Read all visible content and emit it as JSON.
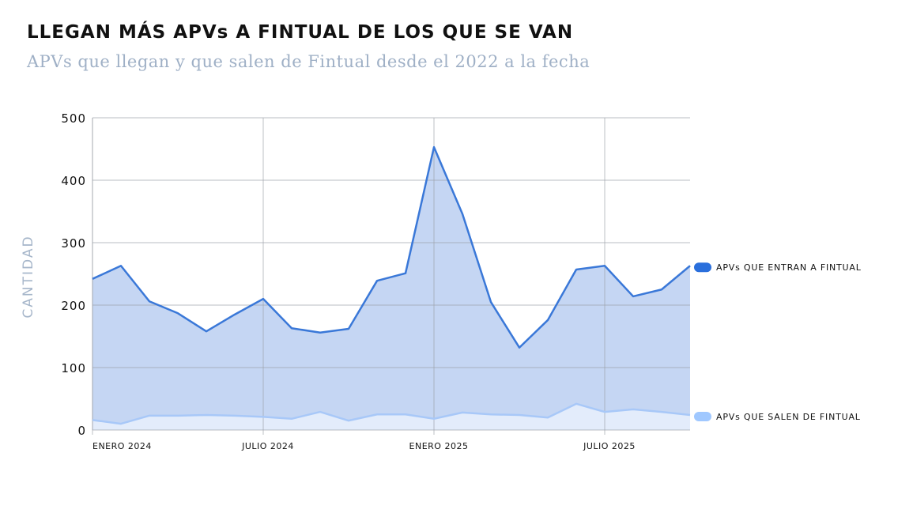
{
  "header": {
    "title": "LLEGAN MÁS APVs A FINTUAL DE LOS QUE SE VAN",
    "subtitle": "APVs que llegan y que salen de Fintual desde el 2022 a la fecha"
  },
  "chart_data": {
    "type": "area",
    "title": "LLEGAN MÁS APVs A FINTUAL DE LOS QUE SE VAN",
    "subtitle": "APVs que llegan y que salen de Fintual desde el 2022 a la fecha",
    "ylabel": "CANTIDAD",
    "ylim": [
      0,
      500
    ],
    "yticks": [
      "0",
      "100",
      "200",
      "300",
      "400",
      "500"
    ],
    "xlim": [
      "2024-01",
      "2025-10"
    ],
    "xticks": [
      {
        "label": "ENERO 2024",
        "x": "2024-01"
      },
      {
        "label": "JULIO 2024",
        "x": "2024-07"
      },
      {
        "label": "ENERO 2025",
        "x": "2025-01"
      },
      {
        "label": "JULIO 2025",
        "x": "2025-07"
      }
    ],
    "grid": true,
    "legend_placement": "right",
    "x": [
      "2024-01",
      "2024-02",
      "2024-03",
      "2024-04",
      "2024-05",
      "2024-06",
      "2024-07",
      "2024-08",
      "2024-09",
      "2024-10",
      "2024-11",
      "2024-12",
      "2025-01",
      "2025-02",
      "2025-03",
      "2025-04",
      "2025-05",
      "2025-06",
      "2025-07",
      "2025-08",
      "2025-09",
      "2025-10"
    ],
    "series": [
      {
        "name": "APVs QUE ENTRAN A FINTUAL",
        "color": "#3a78d8",
        "fill": "#c5d6f3",
        "legend_color": "#2a6fdc",
        "values": [
          242,
          263,
          206,
          187,
          158,
          185,
          210,
          163,
          156,
          162,
          239,
          251,
          453,
          346,
          205,
          132,
          176,
          257,
          263,
          214,
          225,
          263
        ]
      },
      {
        "name": "APVs QUE SALEN DE FINTUAL",
        "color": "#a8c8f8",
        "fill": "#e3ecfb",
        "legend_color": "#a0c8ff",
        "values": [
          16,
          10,
          23,
          23,
          24,
          23,
          21,
          18,
          29,
          15,
          25,
          25,
          18,
          28,
          25,
          24,
          20,
          42,
          29,
          33,
          29,
          24
        ]
      }
    ]
  }
}
